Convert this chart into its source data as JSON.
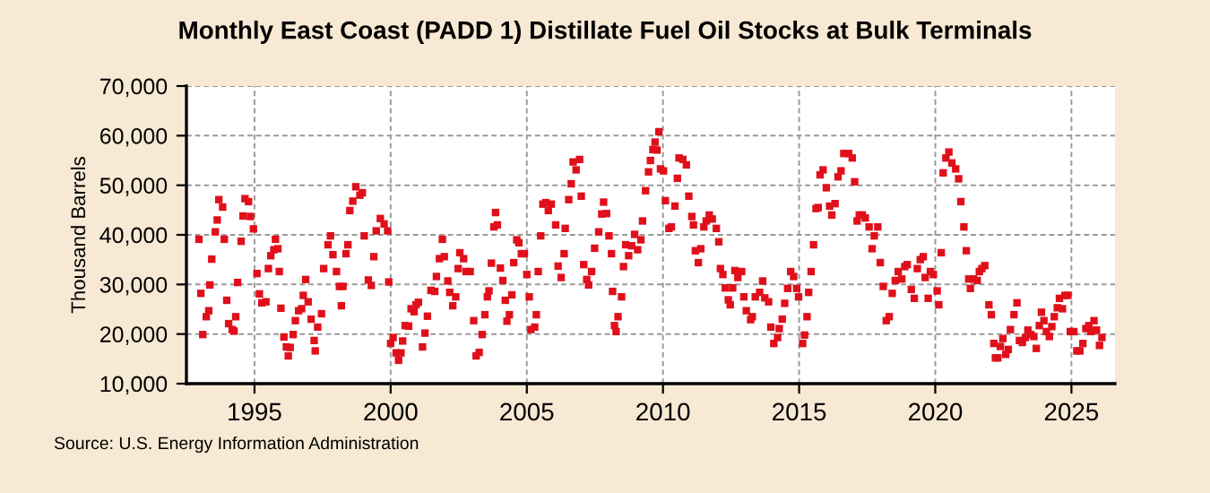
{
  "chart_data": {
    "type": "scatter",
    "title": "Monthly East Coast (PADD 1) Distillate Fuel Oil Stocks at Bulk Terminals",
    "ylabel": "Thousand Barrels",
    "annotations": [
      "Source: U.S. Energy Information Administration"
    ],
    "marker": "square",
    "grid": true,
    "xlim": [
      1992.5,
      2026.6
    ],
    "xticks": [
      1995,
      2000,
      2005,
      2010,
      2015,
      2020,
      2025
    ],
    "ylim": [
      10000,
      70000
    ],
    "yticks": [
      {
        "value": 10000,
        "label": "10,000"
      },
      {
        "value": 20000,
        "label": "20,000"
      },
      {
        "value": 30000,
        "label": "30,000"
      },
      {
        "value": 40000,
        "label": "40,000"
      },
      {
        "value": 50000,
        "label": "50,000"
      },
      {
        "value": 60000,
        "label": "60,000"
      },
      {
        "value": 70000,
        "label": "70,000"
      }
    ],
    "series": [
      {
        "color": "#e0101b",
        "x": [
          1992.96,
          1993.03,
          1993.1,
          1993.23,
          1993.32,
          1993.36,
          1993.43,
          1993.56,
          1993.63,
          1993.69,
          1993.83,
          1993.89,
          1993.98,
          1994.05,
          1994.18,
          1994.25,
          1994.31,
          1994.38,
          1994.51,
          1994.58,
          1994.65,
          1994.78,
          1994.85,
          1994.96,
          1995.09,
          1995.18,
          1995.27,
          1995.42,
          1995.51,
          1995.6,
          1995.71,
          1995.77,
          1995.86,
          1995.91,
          1995.97,
          1996.08,
          1996.17,
          1996.24,
          1996.31,
          1996.42,
          1996.5,
          1996.62,
          1996.73,
          1996.79,
          1996.88,
          1996.97,
          1997.08,
          1997.19,
          1997.23,
          1997.32,
          1997.46,
          1997.54,
          1997.7,
          1997.79,
          1997.88,
          1998.01,
          1998.12,
          1998.19,
          1998.25,
          1998.36,
          1998.43,
          1998.5,
          1998.61,
          1998.72,
          1998.87,
          1998.96,
          1999.03,
          1999.18,
          1999.29,
          1999.38,
          1999.47,
          1999.62,
          1999.76,
          1999.89,
          1999.93,
          2000.0,
          2000.09,
          2000.2,
          2000.29,
          2000.38,
          2000.44,
          2000.53,
          2000.66,
          2000.75,
          2000.86,
          2000.93,
          2001.02,
          2001.17,
          2001.26,
          2001.35,
          2001.48,
          2001.62,
          2001.68,
          2001.79,
          2001.9,
          2001.97,
          2002.1,
          2002.17,
          2002.28,
          2002.39,
          2002.48,
          2002.54,
          2002.68,
          2002.77,
          2002.92,
          2003.05,
          2003.14,
          2003.25,
          2003.36,
          2003.46,
          2003.55,
          2003.61,
          2003.7,
          2003.79,
          2003.85,
          2003.92,
          2004.03,
          2004.12,
          2004.21,
          2004.27,
          2004.36,
          2004.45,
          2004.52,
          2004.63,
          2004.71,
          2004.8,
          2004.91,
          2005.0,
          2005.09,
          2005.15,
          2005.29,
          2005.35,
          2005.42,
          2005.51,
          2005.59,
          2005.7,
          2005.79,
          2005.9,
          2006.06,
          2006.15,
          2006.26,
          2006.37,
          2006.41,
          2006.54,
          2006.63,
          2006.7,
          2006.81,
          2006.94,
          2007.0,
          2007.09,
          2007.2,
          2007.27,
          2007.38,
          2007.49,
          2007.64,
          2007.75,
          2007.82,
          2007.93,
          2008.02,
          2008.11,
          2008.15,
          2008.22,
          2008.28,
          2008.35,
          2008.48,
          2008.55,
          2008.63,
          2008.74,
          2008.85,
          2008.96,
          2009.07,
          2009.19,
          2009.25,
          2009.36,
          2009.47,
          2009.54,
          2009.63,
          2009.71,
          2009.78,
          2009.85,
          2009.91,
          2010.02,
          2010.09,
          2010.22,
          2010.31,
          2010.44,
          2010.53,
          2010.59,
          2010.73,
          2010.86,
          2010.95,
          2011.06,
          2011.12,
          2011.19,
          2011.3,
          2011.39,
          2011.5,
          2011.59,
          2011.7,
          2011.81,
          2011.96,
          2012.05,
          2012.11,
          2012.2,
          2012.29,
          2012.4,
          2012.47,
          2012.56,
          2012.64,
          2012.75,
          2012.89,
          2012.97,
          2013.06,
          2013.22,
          2013.28,
          2013.39,
          2013.55,
          2013.66,
          2013.74,
          2013.88,
          2013.96,
          2014.07,
          2014.21,
          2014.27,
          2014.38,
          2014.47,
          2014.58,
          2014.69,
          2014.8,
          2014.91,
          2014.98,
          2015.13,
          2015.2,
          2015.29,
          2015.35,
          2015.44,
          2015.53,
          2015.62,
          2015.7,
          2015.77,
          2015.88,
          2016.0,
          2016.12,
          2016.2,
          2016.32,
          2016.43,
          2016.54,
          2016.64,
          2016.82,
          2016.95,
          2017.04,
          2017.13,
          2017.21,
          2017.32,
          2017.43,
          2017.57,
          2017.68,
          2017.76,
          2017.89,
          2017.98,
          2018.09,
          2018.2,
          2018.31,
          2018.42,
          2018.53,
          2018.64,
          2018.77,
          2018.88,
          2018.97,
          2019.12,
          2019.23,
          2019.34,
          2019.45,
          2019.56,
          2019.63,
          2019.74,
          2019.82,
          2019.93,
          2020.07,
          2020.13,
          2020.22,
          2020.29,
          2020.39,
          2020.5,
          2020.61,
          2020.75,
          2020.86,
          2020.94,
          2021.05,
          2021.14,
          2021.23,
          2021.29,
          2021.4,
          2021.54,
          2021.62,
          2021.71,
          2021.82,
          2021.97,
          2022.06,
          2022.15,
          2022.21,
          2022.3,
          2022.39,
          2022.48,
          2022.59,
          2022.68,
          2022.76,
          2022.89,
          2023.0,
          2023.09,
          2023.2,
          2023.31,
          2023.4,
          2023.51,
          2023.62,
          2023.71,
          2023.82,
          2023.9,
          2023.99,
          2024.08,
          2024.19,
          2024.28,
          2024.37,
          2024.48,
          2024.56,
          2024.67,
          2024.76,
          2024.87,
          2024.96,
          2025.09,
          2025.2,
          2025.31,
          2025.42,
          2025.53,
          2025.64,
          2025.72,
          2025.83,
          2025.92,
          2026.03,
          2026.12
        ],
        "values": [
          39100,
          28200,
          19900,
          23500,
          24700,
          29900,
          35100,
          40600,
          43000,
          47100,
          45600,
          39100,
          26800,
          22100,
          20900,
          20600,
          23500,
          30400,
          38700,
          43800,
          47300,
          46700,
          43700,
          41200,
          32200,
          28100,
          26300,
          26500,
          33200,
          35800,
          37000,
          39100,
          37200,
          32600,
          25200,
          19400,
          17400,
          15600,
          17300,
          19900,
          22700,
          24700,
          25100,
          27800,
          31000,
          26500,
          23000,
          18700,
          16600,
          21400,
          24100,
          33200,
          38000,
          39800,
          36000,
          32600,
          29600,
          25700,
          29600,
          36200,
          38000,
          44900,
          46800,
          49700,
          48000,
          48500,
          39800,
          30900,
          29800,
          35600,
          40800,
          43300,
          42200,
          40800,
          30500,
          18100,
          19300,
          16200,
          14700,
          16200,
          18600,
          21700,
          21600,
          25100,
          24500,
          25900,
          26400,
          17400,
          20200,
          23600,
          28800,
          28600,
          31600,
          35200,
          39100,
          35600,
          30700,
          28400,
          25700,
          27500,
          33200,
          36400,
          35200,
          32600,
          32600,
          22700,
          15600,
          16300,
          19900,
          23900,
          27500,
          28700,
          34300,
          41600,
          44500,
          42000,
          33300,
          30800,
          26800,
          22600,
          23900,
          27900,
          34400,
          39000,
          38400,
          36200,
          36200,
          32000,
          27500,
          20900,
          21400,
          23900,
          32600,
          39800,
          46200,
          46500,
          44900,
          46200,
          42000,
          33700,
          31400,
          36200,
          41300,
          47100,
          50300,
          54700,
          53100,
          55200,
          47800,
          34000,
          31000,
          29900,
          32600,
          37300,
          40600,
          44200,
          46600,
          44300,
          39800,
          36200,
          28600,
          21700,
          20500,
          23500,
          27500,
          33600,
          38000,
          35800,
          37800,
          40100,
          37000,
          39000,
          42800,
          48900,
          52700,
          55000,
          57200,
          58700,
          57100,
          60800,
          53300,
          52900,
          46900,
          41300,
          41600,
          45800,
          51400,
          55500,
          55200,
          54100,
          47800,
          43700,
          42000,
          36800,
          34400,
          37200,
          41600,
          42800,
          44000,
          43200,
          41300,
          38600,
          33200,
          32000,
          29300,
          26900,
          25900,
          29300,
          32800,
          31400,
          32600,
          27500,
          24700,
          22900,
          23500,
          27500,
          28400,
          30700,
          27300,
          26500,
          21400,
          18100,
          19300,
          21100,
          23000,
          26200,
          29200,
          32600,
          31600,
          29200,
          27500,
          18100,
          19800,
          23500,
          28400,
          32600,
          38000,
          45300,
          45500,
          52100,
          53100,
          49500,
          45800,
          44000,
          46300,
          51700,
          52900,
          56400,
          56400,
          55500,
          50700,
          42800,
          44000,
          44000,
          43400,
          41600,
          37200,
          39800,
          41600,
          34400,
          29600,
          22700,
          23500,
          28200,
          30800,
          32600,
          31100,
          33600,
          34000,
          29000,
          27200,
          33200,
          35000,
          35600,
          31400,
          27200,
          32600,
          32000,
          28700,
          25900,
          36400,
          52500,
          55500,
          56700,
          54500,
          53300,
          51300,
          46700,
          41600,
          36800,
          31100,
          29200,
          31100,
          30800,
          32600,
          33200,
          33800,
          25900,
          23900,
          18100,
          15200,
          15200,
          17500,
          19100,
          15900,
          16900,
          20900,
          23900,
          26300,
          18700,
          18300,
          19300,
          20800,
          19900,
          19500,
          17100,
          21700,
          24400,
          22700,
          20500,
          19500,
          21500,
          23500,
          25300,
          27200,
          25100,
          27800,
          27800,
          20500,
          20500,
          16600,
          16600,
          18100,
          21100,
          21700,
          20500,
          22700,
          20800,
          17700,
          19300
        ]
      }
    ]
  }
}
